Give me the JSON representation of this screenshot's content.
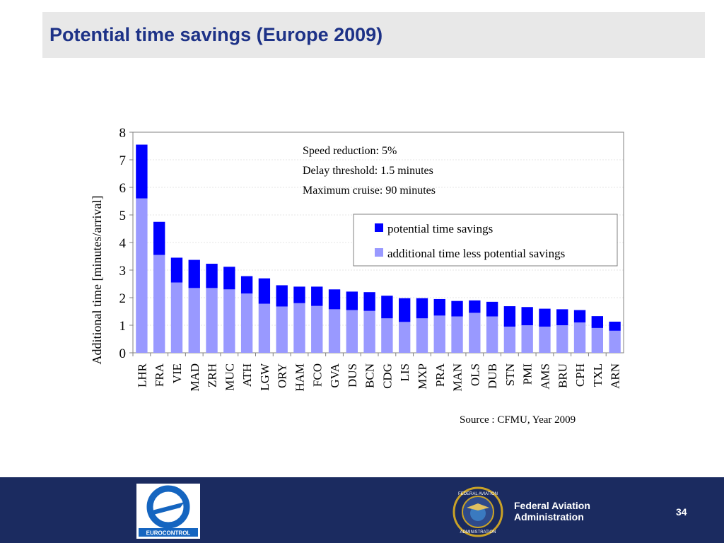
{
  "slide": {
    "title": "Potential time savings (Europe  2009)",
    "page_number": "34"
  },
  "footer": {
    "logo_left": "EUROCONTROL",
    "seal_text_top": "FEDERAL AVIATION",
    "seal_text_bottom": "ADMINISTRATION",
    "agency_line1": "Federal Aviation",
    "agency_line2": "Administration"
  },
  "colors": {
    "title": "#1d3287",
    "series_savings": "#0000ff",
    "series_additional": "#9999ff",
    "footer_bg": "#1b2b60"
  },
  "chart_data": {
    "type": "bar",
    "stacked": true,
    "categories": [
      "LHR",
      "FRA",
      "VIE",
      "MAD",
      "ZRH",
      "MUC",
      "ATH",
      "LGW",
      "ORY",
      "HAM",
      "FCO",
      "GVA",
      "DUS",
      "BCN",
      "CDG",
      "LIS",
      "MXP",
      "PRA",
      "MAN",
      "OLS",
      "DUB",
      "STN",
      "PMI",
      "AMS",
      "BRU",
      "CPH",
      "TXL",
      "ARN"
    ],
    "series": [
      {
        "name": "additional time less potential savings",
        "color": "#9999ff",
        "values": [
          5.6,
          3.55,
          2.55,
          2.35,
          2.35,
          2.3,
          2.15,
          1.78,
          1.68,
          1.8,
          1.7,
          1.58,
          1.55,
          1.52,
          1.25,
          1.12,
          1.25,
          1.35,
          1.32,
          1.45,
          1.32,
          0.95,
          1.0,
          0.95,
          1.0,
          1.1,
          0.9,
          0.8
        ]
      },
      {
        "name": "potential time savings",
        "color": "#0000ff",
        "values": [
          1.95,
          1.2,
          0.9,
          1.02,
          0.88,
          0.82,
          0.63,
          0.92,
          0.77,
          0.6,
          0.7,
          0.72,
          0.67,
          0.68,
          0.82,
          0.86,
          0.73,
          0.6,
          0.56,
          0.45,
          0.53,
          0.74,
          0.66,
          0.65,
          0.58,
          0.45,
          0.43,
          0.33
        ]
      }
    ],
    "title": "",
    "xlabel": "",
    "ylabel": "Additional time [minutes/arrival]",
    "ylim": [
      0,
      8
    ],
    "yticks": [
      "0",
      "1",
      "2",
      "3",
      "4",
      "5",
      "6",
      "7",
      "8"
    ],
    "grid": true,
    "legend_position": "right",
    "annotations": [
      "Speed reduction: 5%",
      "Delay threshold: 1.5 minutes",
      "Maximum cruise: 90 minutes"
    ],
    "source": "Source : CFMU, Year 2009"
  }
}
